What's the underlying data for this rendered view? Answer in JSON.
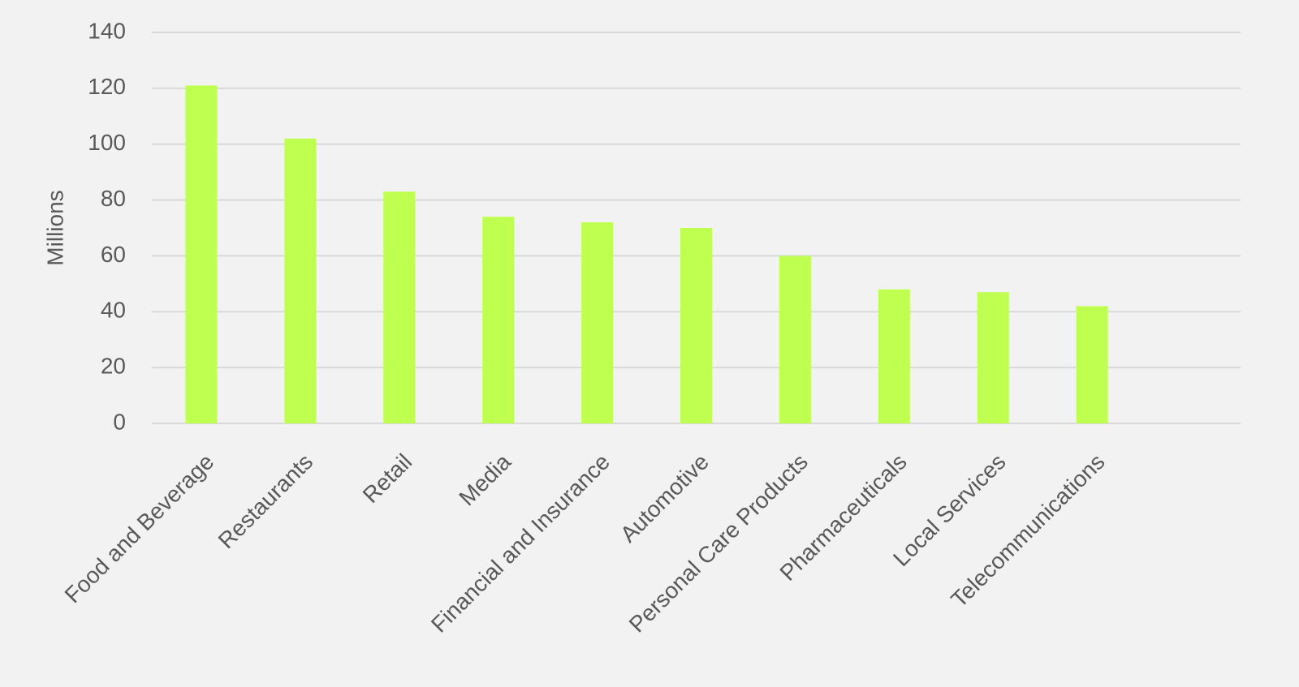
{
  "chart_data": {
    "type": "bar",
    "y_label": "Millions",
    "categories": [
      "Food and Beverage",
      "Restaurants",
      "Retail",
      "Media",
      "Financial and Insurance",
      "Automotive",
      "Personal Care Products",
      "Pharmaceuticals",
      "Local Services",
      "Telecommunications",
      null
    ],
    "values": [
      121,
      102,
      83,
      74,
      72,
      70,
      60,
      48,
      47,
      42,
      null
    ],
    "color": "#bfff4f",
    "ylim": [
      0,
      140
    ],
    "yticks": [
      0,
      20,
      40,
      60,
      80,
      100,
      120,
      140
    ],
    "grid": true
  }
}
